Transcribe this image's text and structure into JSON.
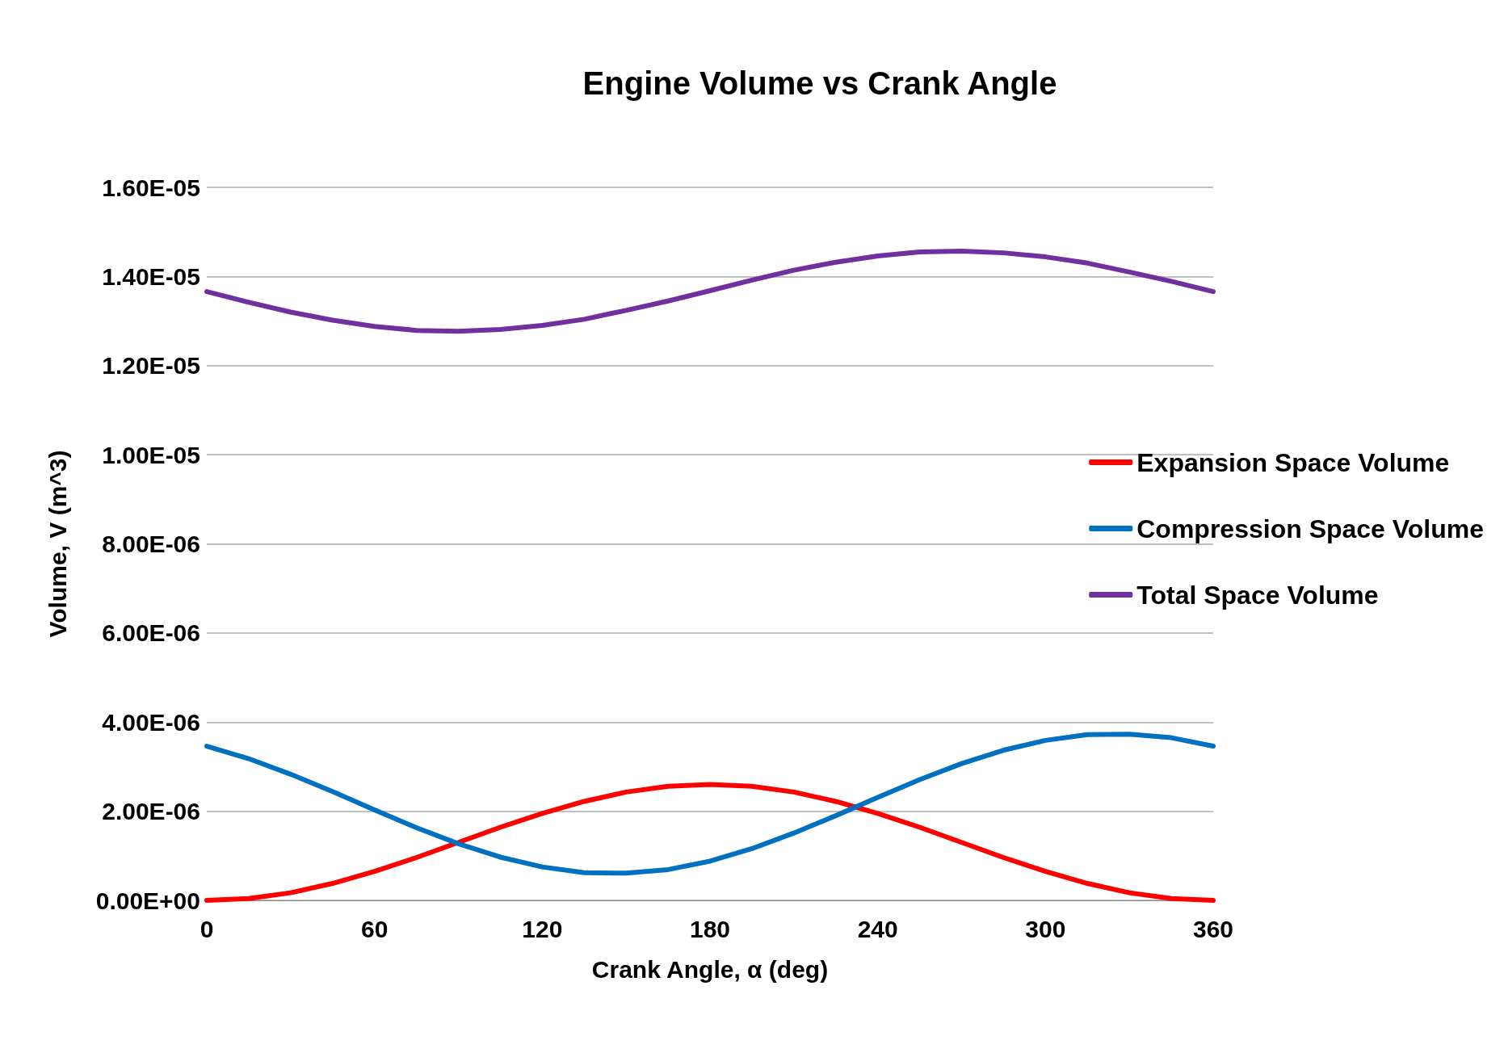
{
  "chart_data": {
    "type": "line",
    "title": "Engine Volume vs Crank Angle",
    "xlabel": "Crank Angle, α (deg)",
    "ylabel": "Volume, V (m^3)",
    "x": [
      0,
      15,
      30,
      45,
      60,
      75,
      90,
      105,
      120,
      135,
      150,
      165,
      180,
      195,
      210,
      225,
      240,
      255,
      270,
      285,
      300,
      315,
      330,
      345,
      360
    ],
    "series": [
      {
        "name": "Expansion Space Volume",
        "color": "#ff0000",
        "values": [
          0,
          4e-08,
          1.7e-07,
          3.8e-07,
          6.5e-07,
          9.6e-07,
          1.3e-06,
          1.64e-06,
          1.95e-06,
          2.22e-06,
          2.43e-06,
          2.56e-06,
          2.6e-06,
          2.56e-06,
          2.43e-06,
          2.22e-06,
          1.95e-06,
          1.64e-06,
          1.3e-06,
          9.6e-07,
          6.5e-07,
          3.8e-07,
          1.7e-07,
          4e-08,
          0
        ]
      },
      {
        "name": "Compression Space Volume",
        "color": "#0070c0",
        "values": [
          3.46e-06,
          3.18e-06,
          2.83e-06,
          2.44e-06,
          2.03e-06,
          1.63e-06,
          1.27e-06,
          9.7e-07,
          7.5e-07,
          6.2e-07,
          6.1e-07,
          6.9e-07,
          8.8e-07,
          1.16e-06,
          1.51e-06,
          1.9e-06,
          2.31e-06,
          2.71e-06,
          3.07e-06,
          3.37e-06,
          3.59e-06,
          3.72e-06,
          3.73e-06,
          3.65e-06,
          3.46e-06
        ]
      },
      {
        "name": "Total Space Volume",
        "color": "#7030a0",
        "values": [
          1.366e-05,
          1.342e-05,
          1.32e-05,
          1.302e-05,
          1.288e-05,
          1.279e-05,
          1.277e-05,
          1.281e-05,
          1.29e-05,
          1.304e-05,
          1.324e-05,
          1.345e-05,
          1.368e-05,
          1.392e-05,
          1.414e-05,
          1.432e-05,
          1.446e-05,
          1.455e-05,
          1.457e-05,
          1.453e-05,
          1.444e-05,
          1.43e-05,
          1.41e-05,
          1.389e-05,
          1.366e-05
        ]
      }
    ],
    "xlim": [
      0,
      360
    ],
    "xticks": [
      0,
      60,
      120,
      180,
      240,
      300,
      360
    ],
    "ylim": [
      0,
      1.6e-05
    ],
    "yticks": [
      {
        "value": 0,
        "label": "0.00E+00"
      },
      {
        "value": 2e-06,
        "label": "2.00E-06"
      },
      {
        "value": 4e-06,
        "label": "4.00E-06"
      },
      {
        "value": 6e-06,
        "label": "6.00E-06"
      },
      {
        "value": 8e-06,
        "label": "8.00E-06"
      },
      {
        "value": 1e-05,
        "label": "1.00E-05"
      },
      {
        "value": 1.2e-05,
        "label": "1.20E-05"
      },
      {
        "value": 1.4e-05,
        "label": "1.40E-05"
      },
      {
        "value": 1.6e-05,
        "label": "1.60E-05"
      }
    ],
    "grid": "y",
    "legend": "right",
    "marker": "none",
    "line_style": "solid"
  }
}
